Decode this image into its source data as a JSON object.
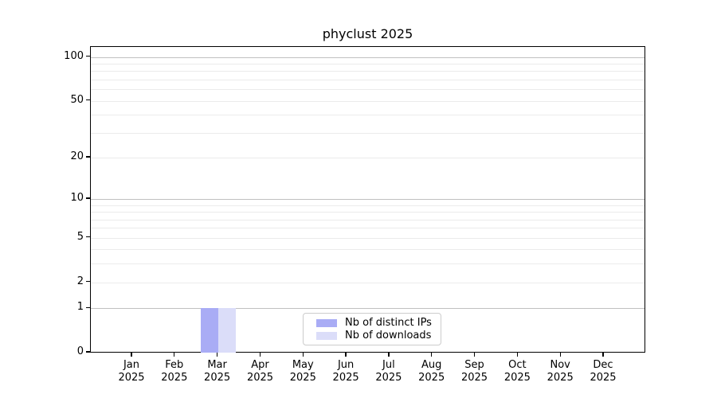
{
  "figure": {
    "background": "#ffffff"
  },
  "chart_data": {
    "type": "bar",
    "title": "phyclust 2025",
    "categories": [
      "Jan 2025",
      "Feb 2025",
      "Mar 2025",
      "Apr 2025",
      "May 2025",
      "Jun 2025",
      "Jul 2025",
      "Aug 2025",
      "Sep 2025",
      "Oct 2025",
      "Nov 2025",
      "Dec 2025"
    ],
    "x_tick_month": [
      "Jan",
      "Feb",
      "Mar",
      "Apr",
      "May",
      "Jun",
      "Jul",
      "Aug",
      "Sep",
      "Oct",
      "Nov",
      "Dec"
    ],
    "x_tick_year": "2025",
    "series": [
      {
        "name": "Nb of distinct IPs",
        "color": "#a9acf5",
        "values": [
          0,
          0,
          1,
          0,
          0,
          0,
          0,
          0,
          0,
          0,
          0,
          0
        ]
      },
      {
        "name": "Nb of downloads",
        "color": "#dbddf9",
        "values": [
          0,
          0,
          1,
          0,
          0,
          0,
          0,
          0,
          0,
          0,
          0,
          0
        ]
      }
    ],
    "y_scale": "log1p",
    "ylim": [
      0,
      100
    ],
    "y_tick_labels": [
      0,
      1,
      2,
      5,
      10,
      20,
      50,
      100
    ],
    "y_major_gridlines": [
      1,
      10,
      100
    ],
    "y_minor_gridlines": [
      2,
      3,
      4,
      5,
      6,
      7,
      8,
      9,
      20,
      30,
      40,
      50,
      60,
      70,
      80,
      90
    ],
    "grid": true,
    "legend_position": "bottom-center",
    "colors": {
      "axis": "#000000",
      "text": "#000000",
      "major_grid": "#c0c0c0",
      "minor_grid": "#ebebeb",
      "legend_border": "#cccccc"
    }
  }
}
